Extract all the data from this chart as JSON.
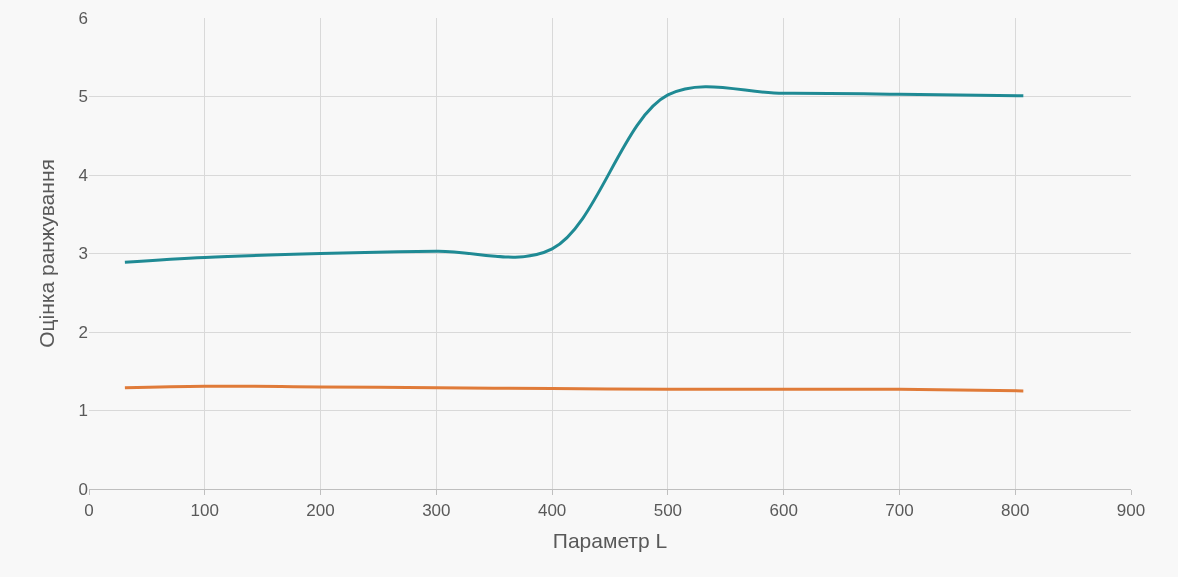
{
  "chart_data": {
    "type": "line",
    "xlabel": "Параметр L",
    "ylabel": "Оцінка ранжування",
    "x": [
      31,
      100,
      200,
      300,
      400,
      500,
      600,
      700,
      807
    ],
    "series": [
      {
        "color": "#1f8a94",
        "values": [
          2.89,
          2.95,
          3.0,
          3.03,
          3.06,
          5.02,
          5.04,
          5.03,
          5.01
        ]
      },
      {
        "color": "#e07b39",
        "values": [
          1.29,
          1.31,
          1.3,
          1.29,
          1.28,
          1.27,
          1.27,
          1.27,
          1.25
        ]
      }
    ],
    "xlim": [
      0,
      900
    ],
    "xticks": [
      0,
      100,
      200,
      300,
      400,
      500,
      600,
      700,
      800,
      900
    ],
    "ylim": [
      0,
      6
    ],
    "yticks": [
      0,
      1,
      2,
      3,
      4,
      5,
      6
    ],
    "grid": true,
    "marker": "none",
    "line_style": "solid"
  }
}
